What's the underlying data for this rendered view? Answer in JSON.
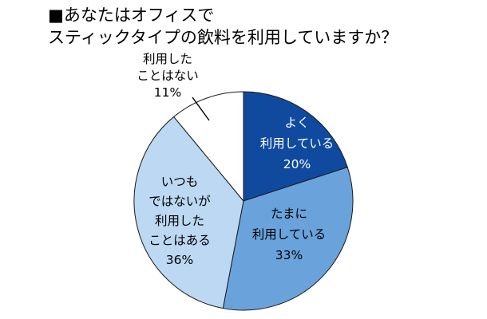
{
  "chart_data": {
    "type": "pie",
    "title_lines": [
      "■あなたはオフィスで",
      "スティックタイプの飲料を利用していますか？"
    ],
    "slices": [
      {
        "label_lines": [
          "よく",
          "利用している"
        ],
        "value": 20,
        "value_label": "20%",
        "color": "#0f4a9e",
        "text_color": "#ffffff"
      },
      {
        "label_lines": [
          "たまに",
          "利用している"
        ],
        "value": 33,
        "value_label": "33%",
        "color": "#6aa3dc",
        "text_color": "#000000"
      },
      {
        "label_lines": [
          "いつも",
          "ではないが",
          "利用した",
          "ことはある"
        ],
        "value": 36,
        "value_label": "36%",
        "color": "#bcd8f2",
        "text_color": "#000000"
      },
      {
        "label_lines": [
          "利用した",
          "ことはない"
        ],
        "value": 11,
        "value_label": "11%",
        "color": "#ffffff",
        "text_color": "#000000"
      }
    ]
  }
}
